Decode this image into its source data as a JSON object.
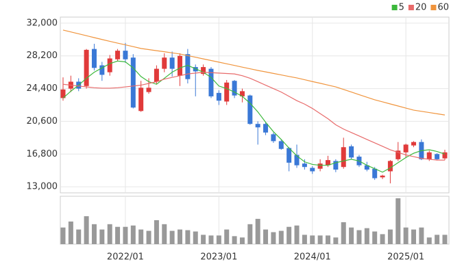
{
  "chart_data": {
    "type": "candlestick",
    "categories": [
      null,
      null,
      null,
      null,
      null,
      null,
      null,
      null,
      "2022/01",
      null,
      null,
      null,
      null,
      null,
      null,
      null,
      null,
      null,
      null,
      null,
      "2023/01",
      null,
      null,
      null,
      null,
      null,
      null,
      null,
      null,
      null,
      null,
      null,
      "2024/01",
      null,
      null,
      null,
      null,
      null,
      null,
      null,
      null,
      null,
      null,
      null,
      "2025/01",
      null,
      null,
      null,
      null,
      null
    ],
    "open": [
      23300,
      24400,
      25200,
      24700,
      29000,
      27100,
      26300,
      27800,
      28800,
      28000,
      21800,
      24000,
      25200,
      26700,
      28000,
      25900,
      28400,
      26900,
      26100,
      26700,
      23900,
      22900,
      25300,
      23500,
      23600,
      20300,
      20300,
      19100,
      18300,
      17500,
      16700,
      15700,
      15200,
      15100,
      15500,
      16000,
      15300,
      17700,
      16500,
      15500,
      15100,
      14100,
      14800,
      16200,
      17000,
      17800,
      18200,
      16200,
      16800,
      16300
    ],
    "high": [
      25700,
      25900,
      25600,
      29000,
      29600,
      27500,
      28300,
      29000,
      29700,
      28400,
      25300,
      25600,
      27100,
      28500,
      28700,
      28500,
      29000,
      27200,
      27200,
      26900,
      24200,
      25400,
      25400,
      24400,
      23700,
      20600,
      20500,
      19300,
      18500,
      17600,
      17900,
      16200,
      15400,
      16200,
      16600,
      16200,
      18700,
      17900,
      16700,
      15900,
      15300,
      14400,
      16100,
      18200,
      18000,
      18300,
      18500,
      17200,
      16900,
      17300
    ],
    "low": [
      23000,
      24000,
      24100,
      24400,
      26500,
      25300,
      25900,
      27600,
      27400,
      22100,
      21700,
      23800,
      24900,
      26300,
      25800,
      24700,
      25000,
      23500,
      25900,
      23300,
      22500,
      22500,
      23300,
      22800,
      20200,
      17900,
      19000,
      18100,
      17300,
      14800,
      15200,
      15000,
      14500,
      14800,
      15300,
      14700,
      15100,
      16200,
      15300,
      14800,
      13800,
      13900,
      13400,
      16000,
      16400,
      17600,
      16100,
      16000,
      16100,
      16100
    ],
    "close": [
      24300,
      25200,
      24400,
      28900,
      26800,
      26000,
      27900,
      28800,
      27800,
      22200,
      24500,
      24500,
      26700,
      28000,
      26700,
      28200,
      25500,
      26400,
      26900,
      23500,
      23000,
      25100,
      23600,
      24100,
      20300,
      19900,
      19300,
      18300,
      17400,
      15800,
      15500,
      15300,
      14800,
      15700,
      16100,
      15000,
      17600,
      16400,
      15500,
      15000,
      14000,
      14300,
      16000,
      17200,
      17900,
      18200,
      16200,
      17000,
      16200,
      17000
    ],
    "up_color": "#e03a3a",
    "down_color": "#3a78d6",
    "series": [
      {
        "name": "5",
        "color": "#3cb83c",
        "values": [
          23300,
          24100,
          24800,
          25600,
          26300,
          26800,
          27300,
          27600,
          27500,
          26800,
          25800,
          25200,
          24900,
          25600,
          26300,
          26800,
          27100,
          26700,
          26300,
          25700,
          24700,
          24400,
          24000,
          23500,
          22700,
          21700,
          20500,
          19400,
          18500,
          17500,
          16600,
          15900,
          15600,
          15500,
          15500,
          15800,
          16000,
          16200,
          16000,
          15500,
          15100,
          14700,
          15200,
          15800,
          16400,
          16900,
          17200,
          17300,
          17100,
          16800
        ]
      },
      {
        "name": "20",
        "color": "#e86a6a",
        "values": [
          24900,
          24800,
          24700,
          24600,
          24500,
          24450,
          24450,
          24500,
          24600,
          24700,
          24800,
          25000,
          25200,
          25500,
          25700,
          25900,
          26100,
          26200,
          26300,
          26250,
          26200,
          26150,
          26100,
          25900,
          25600,
          25200,
          24800,
          24400,
          24000,
          23500,
          23000,
          22600,
          22100,
          21500,
          20900,
          20200,
          19700,
          19300,
          18900,
          18500,
          18100,
          17700,
          17300,
          17000,
          16700,
          16500,
          16300,
          16200,
          16100,
          16100
        ]
      },
      {
        "name": "60",
        "color": "#f0943c",
        "values": [
          31200,
          30980,
          30760,
          30540,
          30320,
          30100,
          29890,
          29680,
          29480,
          29270,
          29060,
          28930,
          28800,
          28680,
          28550,
          28420,
          28230,
          28040,
          27850,
          27660,
          27470,
          27280,
          27090,
          26890,
          26700,
          26510,
          26340,
          26160,
          25990,
          25810,
          25640,
          25430,
          25220,
          25020,
          24810,
          24600,
          24300,
          24000,
          23700,
          23400,
          23100,
          22860,
          22620,
          22380,
          22140,
          21900,
          21760,
          21620,
          21480,
          21340
        ]
      }
    ],
    "volume": [
      25,
      34,
      22,
      42,
      30,
      22,
      30,
      26,
      26,
      28,
      22,
      20,
      36,
      30,
      20,
      22,
      21,
      19,
      14,
      13,
      13,
      22,
      12,
      10,
      30,
      38,
      22,
      18,
      20,
      26,
      28,
      14,
      13,
      13,
      13,
      10,
      33,
      25,
      21,
      24,
      19,
      15,
      22,
      69,
      25,
      22,
      25,
      10,
      14,
      14
    ],
    "volume_color": "#999999",
    "volume_lim": [
      0,
      72
    ],
    "ylim": [
      12300,
      32700
    ],
    "yticks": [
      {
        "value": 13000,
        "label": "13,000"
      },
      {
        "value": 16800,
        "label": "16,800"
      },
      {
        "value": 20600,
        "label": "20,600"
      },
      {
        "value": 24400,
        "label": "24,400"
      },
      {
        "value": 28200,
        "label": "28,200"
      },
      {
        "value": 32000,
        "label": "32,000"
      }
    ],
    "grid": true,
    "legend": "top-right"
  }
}
